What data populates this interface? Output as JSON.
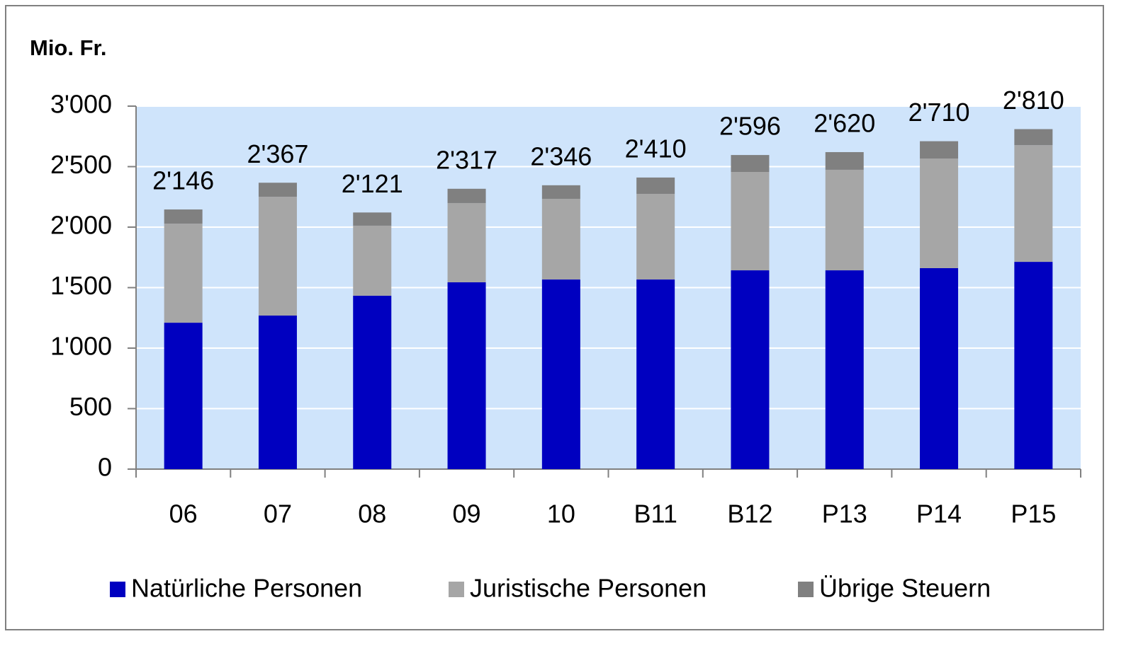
{
  "chart_data": {
    "type": "stacked_bar",
    "title": "Mio. Fr.",
    "categories": [
      "06",
      "07",
      "08",
      "09",
      "10",
      "B11",
      "B12",
      "P13",
      "P14",
      "P15"
    ],
    "series": [
      {
        "name": "Natürliche Personen",
        "color": "#0000c0",
        "values": [
          1210,
          1269,
          1433,
          1544,
          1567,
          1567,
          1643,
          1643,
          1661,
          1713
        ]
      },
      {
        "name": "Juristische Personen",
        "color": "#a6a6a6",
        "values": [
          819,
          982,
          579,
          655,
          667,
          708,
          813,
          831,
          906,
          965
        ]
      },
      {
        "name": "Übrige Steuern",
        "color": "#808080",
        "values": [
          117,
          116,
          109,
          118,
          112,
          135,
          140,
          146,
          143,
          132
        ]
      }
    ],
    "totals": [
      2146,
      2367,
      2121,
      2317,
      2346,
      2410,
      2596,
      2620,
      2710,
      2810
    ],
    "total_labels": [
      "2'146",
      "2'367",
      "2'121",
      "2'317",
      "2'346",
      "2'410",
      "2'596",
      "2'620",
      "2'710",
      "2'810"
    ],
    "ylim": [
      0,
      3000
    ],
    "yticks": [
      0,
      500,
      {
        "value": 1000,
        "label": "1'000"
      },
      {
        "value": 1500,
        "label": "1'500"
      },
      {
        "value": 2000,
        "label": "2'000"
      },
      {
        "value": 2500,
        "label": "2'500"
      },
      {
        "value": 3000,
        "label": "3'000"
      }
    ],
    "grid": true,
    "legend": "bottom",
    "plot_background": "#cfe4fb"
  }
}
